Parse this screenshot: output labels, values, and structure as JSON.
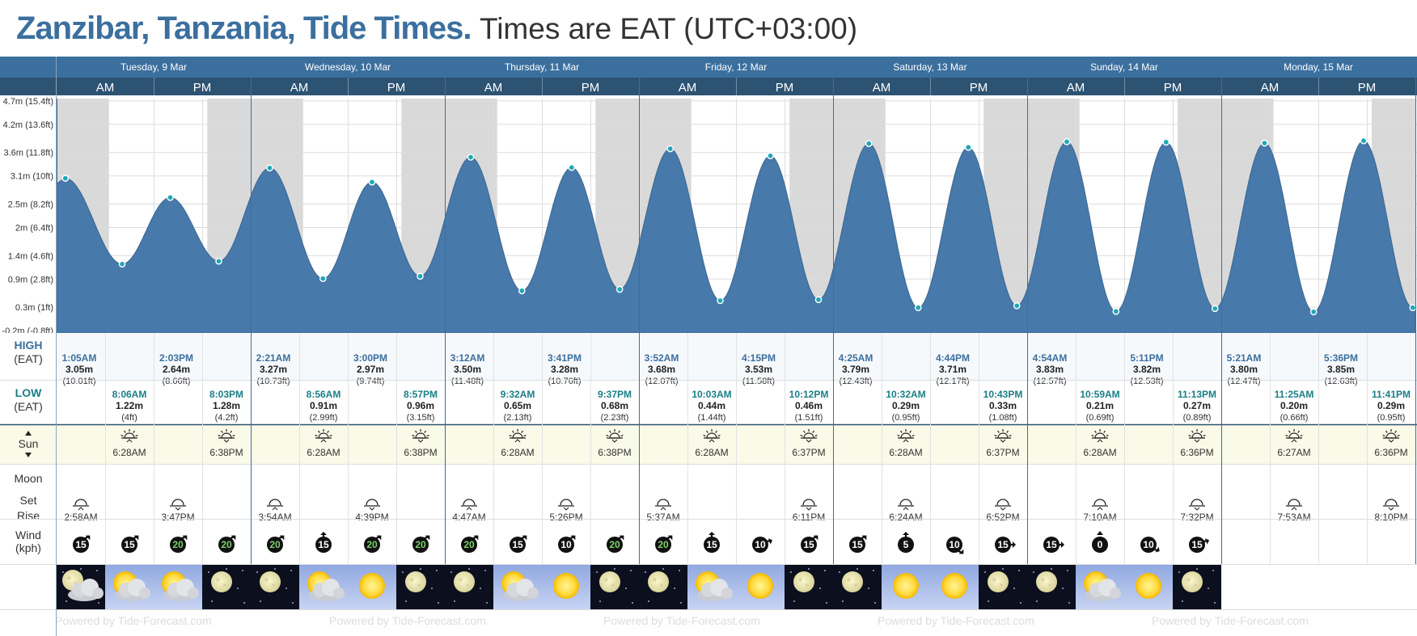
{
  "header": {
    "location_title": "Zanzibar, Tanzania, Tide Times.",
    "timezone_note": "Times are EAT (UTC+03:00)"
  },
  "row_labels": {
    "high": "HIGH",
    "high_tz": "(EAT)",
    "low": "LOW",
    "low_tz": "(EAT)",
    "sun": "Sun",
    "moon": "Moon",
    "moon_set": "Set",
    "moon_rise": "Rise",
    "wind": "Wind",
    "wind_unit": "(kph)",
    "am": "AM",
    "pm": "PM"
  },
  "watermark": "Powered by Tide-Forecast.com",
  "colors": {
    "tide_fill": "#4779aa",
    "header_bg": "#3b6f9e",
    "night_shade": "#d9d9d9",
    "marker": "#1fa8b8",
    "low_text": "#1a7f86",
    "high_text": "#3b6f9e",
    "sun_row_bg": "#fafae8"
  },
  "chart_data": {
    "type": "area",
    "title": "",
    "ylabel": "",
    "y_ticks": [
      {
        "v": 4.7,
        "label": "4.7m (15.4ft)"
      },
      {
        "v": 4.2,
        "label": "4.2m (13.6ft)"
      },
      {
        "v": 3.6,
        "label": "3.6m (11.8ft)"
      },
      {
        "v": 3.1,
        "label": "3.1m (10ft)"
      },
      {
        "v": 2.5,
        "label": "2.5m (8.2ft)"
      },
      {
        "v": 2.0,
        "label": "2m (6.4ft)"
      },
      {
        "v": 1.4,
        "label": "1.4m (4.6ft)"
      },
      {
        "v": 0.9,
        "label": "0.9m (2.8ft)"
      },
      {
        "v": 0.3,
        "label": "0.3m (1ft)"
      },
      {
        "v": -0.2,
        "label": "-0.2m (-0.8ft)"
      }
    ],
    "ylim": [
      -0.25,
      4.75
    ],
    "grid": true,
    "x_range_hours": [
      0,
      168
    ],
    "tide_events": [
      {
        "h": 0.0,
        "v": 2.95
      },
      {
        "h": 1.08,
        "v": 3.05,
        "type": "high"
      },
      {
        "h": 8.1,
        "v": 1.22,
        "type": "low"
      },
      {
        "h": 14.05,
        "v": 2.64,
        "type": "high"
      },
      {
        "h": 20.05,
        "v": 1.28,
        "type": "low"
      },
      {
        "h": 26.35,
        "v": 3.27,
        "type": "high"
      },
      {
        "h": 32.93,
        "v": 0.91,
        "type": "low"
      },
      {
        "h": 39.0,
        "v": 2.97,
        "type": "high"
      },
      {
        "h": 44.95,
        "v": 0.96,
        "type": "low"
      },
      {
        "h": 51.2,
        "v": 3.5,
        "type": "high"
      },
      {
        "h": 57.53,
        "v": 0.65,
        "type": "low"
      },
      {
        "h": 63.68,
        "v": 3.28,
        "type": "high"
      },
      {
        "h": 69.62,
        "v": 0.68,
        "type": "low"
      },
      {
        "h": 75.87,
        "v": 3.68,
        "type": "high"
      },
      {
        "h": 82.05,
        "v": 0.44,
        "type": "low"
      },
      {
        "h": 88.25,
        "v": 3.53,
        "type": "high"
      },
      {
        "h": 94.2,
        "v": 0.46,
        "type": "low"
      },
      {
        "h": 100.42,
        "v": 3.79,
        "type": "high"
      },
      {
        "h": 106.53,
        "v": 0.29,
        "type": "low"
      },
      {
        "h": 112.73,
        "v": 3.71,
        "type": "high"
      },
      {
        "h": 118.72,
        "v": 0.33,
        "type": "low"
      },
      {
        "h": 124.9,
        "v": 3.83,
        "type": "high"
      },
      {
        "h": 130.98,
        "v": 0.21,
        "type": "low"
      },
      {
        "h": 137.18,
        "v": 3.82,
        "type": "high"
      },
      {
        "h": 143.22,
        "v": 0.27,
        "type": "low"
      },
      {
        "h": 149.35,
        "v": 3.8,
        "type": "high"
      },
      {
        "h": 155.42,
        "v": 0.2,
        "type": "low"
      },
      {
        "h": 161.6,
        "v": 3.85,
        "type": "high"
      },
      {
        "h": 167.68,
        "v": 0.29,
        "type": "low"
      },
      {
        "h": 168.0,
        "v": 0.33
      }
    ],
    "night_periods_hours": [
      [
        0,
        6.47
      ],
      [
        18.63,
        30.47
      ],
      [
        42.63,
        54.47
      ],
      [
        66.63,
        78.47
      ],
      [
        90.62,
        102.47
      ],
      [
        114.62,
        126.47
      ],
      [
        138.6,
        150.45
      ],
      [
        162.6,
        168
      ]
    ]
  },
  "days": [
    {
      "label": "Tuesday, 9 Mar",
      "highs": [
        {
          "time": "1:05AM",
          "m": "3.05m",
          "ft": "(10.01ft)"
        },
        {
          "time": "2:03PM",
          "m": "2.64m",
          "ft": "(8.66ft)"
        }
      ],
      "lows": [
        {
          "time": "8:06AM",
          "m": "1.22m",
          "ft": "(4ft)"
        },
        {
          "time": "8:03PM",
          "m": "1.28m",
          "ft": "(4.2ft)"
        }
      ],
      "sunrise": "6:28AM",
      "sunset": "6:38PM",
      "moon": [
        {
          "slot": 0,
          "kind": "rise",
          "time": "2:58AM"
        },
        {
          "slot": 2,
          "kind": "set",
          "time": "3:47PM"
        }
      ],
      "wind": [
        {
          "speed": "15",
          "dir": 225
        },
        {
          "speed": "15",
          "dir": 225
        },
        {
          "speed": "20",
          "dir": 225
        },
        {
          "speed": "20",
          "dir": 225
        }
      ],
      "weather": [
        "moon-cloud",
        "sun-cloud",
        "sun-cloud",
        "moon"
      ]
    },
    {
      "label": "Wednesday, 10 Mar",
      "highs": [
        {
          "time": "2:21AM",
          "m": "3.27m",
          "ft": "(10.73ft)"
        },
        {
          "time": "3:00PM",
          "m": "2.97m",
          "ft": "(9.74ft)"
        }
      ],
      "lows": [
        {
          "time": "8:56AM",
          "m": "0.91m",
          "ft": "(2.99ft)"
        },
        {
          "time": "8:57PM",
          "m": "0.96m",
          "ft": "(3.15ft)"
        }
      ],
      "sunrise": "6:28AM",
      "sunset": "6:38PM",
      "moon": [
        {
          "slot": 0,
          "kind": "rise",
          "time": "3:54AM"
        },
        {
          "slot": 2,
          "kind": "set",
          "time": "4:39PM"
        }
      ],
      "wind": [
        {
          "speed": "20",
          "dir": 225
        },
        {
          "speed": "15",
          "dir": 180
        },
        {
          "speed": "20",
          "dir": 225
        },
        {
          "speed": "20",
          "dir": 225
        }
      ],
      "weather": [
        "moon",
        "sun-cloud",
        "sun",
        "moon"
      ]
    },
    {
      "label": "Thursday, 11 Mar",
      "highs": [
        {
          "time": "3:12AM",
          "m": "3.50m",
          "ft": "(11.48ft)"
        },
        {
          "time": "3:41PM",
          "m": "3.28m",
          "ft": "(10.76ft)"
        }
      ],
      "lows": [
        {
          "time": "9:32AM",
          "m": "0.65m",
          "ft": "(2.13ft)"
        },
        {
          "time": "9:37PM",
          "m": "0.68m",
          "ft": "(2.23ft)"
        }
      ],
      "sunrise": "6:28AM",
      "sunset": "6:38PM",
      "moon": [
        {
          "slot": 0,
          "kind": "rise",
          "time": "4:47AM"
        },
        {
          "slot": 2,
          "kind": "set",
          "time": "5:26PM"
        }
      ],
      "wind": [
        {
          "speed": "20",
          "dir": 225
        },
        {
          "speed": "15",
          "dir": 225
        },
        {
          "speed": "10",
          "dir": 225
        },
        {
          "speed": "20",
          "dir": 225
        }
      ],
      "weather": [
        "moon",
        "sun-cloud",
        "sun",
        "moon"
      ]
    },
    {
      "label": "Friday, 12 Mar",
      "highs": [
        {
          "time": "3:52AM",
          "m": "3.68m",
          "ft": "(12.07ft)"
        },
        {
          "time": "4:15PM",
          "m": "3.53m",
          "ft": "(11.58ft)"
        }
      ],
      "lows": [
        {
          "time": "10:03AM",
          "m": "0.44m",
          "ft": "(1.44ft)"
        },
        {
          "time": "10:12PM",
          "m": "0.46m",
          "ft": "(1.51ft)"
        }
      ],
      "sunrise": "6:28AM",
      "sunset": "6:37PM",
      "moon": [
        {
          "slot": 0,
          "kind": "rise",
          "time": "5:37AM"
        },
        {
          "slot": 3,
          "kind": "set",
          "time": "6:11PM"
        }
      ],
      "wind": [
        {
          "speed": "20",
          "dir": 225
        },
        {
          "speed": "15",
          "dir": 180
        },
        {
          "speed": "10",
          "dir": 250
        },
        {
          "speed": "15",
          "dir": 225
        }
      ],
      "weather": [
        "moon",
        "sun-cloud",
        "sun",
        "moon"
      ]
    },
    {
      "label": "Saturday, 13 Mar",
      "highs": [
        {
          "time": "4:25AM",
          "m": "3.79m",
          "ft": "(12.43ft)"
        },
        {
          "time": "4:44PM",
          "m": "3.71m",
          "ft": "(12.17ft)"
        }
      ],
      "lows": [
        {
          "time": "10:32AM",
          "m": "0.29m",
          "ft": "(0.95ft)"
        },
        {
          "time": "10:43PM",
          "m": "0.33m",
          "ft": "(1.08ft)"
        }
      ],
      "sunrise": "6:28AM",
      "sunset": "6:37PM",
      "moon": [
        {
          "slot": 1,
          "kind": "rise",
          "time": "6:24AM"
        },
        {
          "slot": 3,
          "kind": "set",
          "time": "6:52PM"
        }
      ],
      "wind": [
        {
          "speed": "15",
          "dir": 225
        },
        {
          "speed": "5",
          "dir": 180
        },
        {
          "speed": "10",
          "dir": 315
        },
        {
          "speed": "15",
          "dir": 270
        }
      ],
      "weather": [
        "moon",
        "sun",
        "sun",
        "moon"
      ]
    },
    {
      "label": "Sunday, 14 Mar",
      "highs": [
        {
          "time": "4:54AM",
          "m": "3.83m",
          "ft": "(12.57ft)"
        },
        {
          "time": "5:11PM",
          "m": "3.82m",
          "ft": "(12.53ft)"
        }
      ],
      "lows": [
        {
          "time": "10:59AM",
          "m": "0.21m",
          "ft": "(0.69ft)"
        },
        {
          "time": "11:13PM",
          "m": "0.27m",
          "ft": "(0.89ft)"
        }
      ],
      "sunrise": "6:28AM",
      "sunset": "6:36PM",
      "moon": [
        {
          "slot": 1,
          "kind": "rise",
          "time": "7:10AM"
        },
        {
          "slot": 3,
          "kind": "set",
          "time": "7:32PM"
        }
      ],
      "wind": [
        {
          "speed": "15",
          "dir": 270
        },
        {
          "speed": "0",
          "dir": 0
        },
        {
          "speed": "10",
          "dir": 300
        },
        {
          "speed": "15",
          "dir": 250
        }
      ],
      "weather": [
        "moon",
        "sun-cloud",
        "sun",
        "moon"
      ]
    },
    {
      "label": "Monday, 15 Mar",
      "highs": [
        {
          "time": "5:21AM",
          "m": "3.80m",
          "ft": "(12.47ft)"
        },
        {
          "time": "5:36PM",
          "m": "3.85m",
          "ft": "(12.63ft)"
        }
      ],
      "lows": [
        {
          "time": "11:25AM",
          "m": "0.20m",
          "ft": "(0.66ft)"
        },
        {
          "time": "11:41PM",
          "m": "0.29m",
          "ft": "(0.95ft)"
        }
      ],
      "sunrise": "6:27AM",
      "sunset": "6:36PM",
      "moon": [
        {
          "slot": 1,
          "kind": "rise",
          "time": "7:53AM"
        },
        {
          "slot": 3,
          "kind": "set",
          "time": "8:10PM"
        }
      ],
      "wind": [],
      "weather": []
    }
  ]
}
